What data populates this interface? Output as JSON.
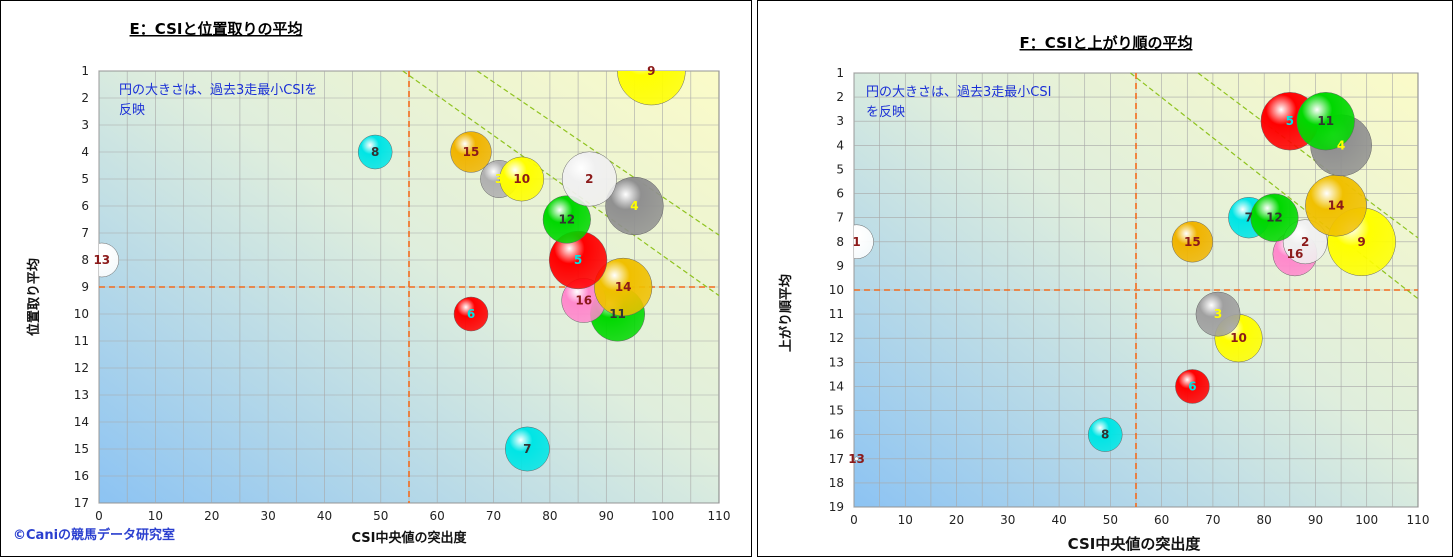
{
  "chart_data": [
    {
      "type": "scatter",
      "title": "E：CSIと位置取りの平均",
      "xlabel": "CSI中央値の突出度",
      "ylabel": "位置取り平均",
      "xlim": [
        0,
        110
      ],
      "ylim": [
        1,
        17
      ],
      "y_reversed": true,
      "xticks": [
        0,
        10,
        20,
        30,
        40,
        50,
        60,
        70,
        80,
        90,
        100,
        110
      ],
      "yticks": [
        1,
        2,
        3,
        4,
        5,
        6,
        7,
        8,
        9,
        10,
        11,
        12,
        13,
        14,
        15,
        16,
        17
      ],
      "reference_lines": {
        "x": 55,
        "y": 9
      },
      "note": [
        "円の大きさは、過去3走最小CSIを",
        "反映"
      ],
      "copyright": "©Caniの競馬データ研究室",
      "grid": true,
      "points": [
        {
          "label": "13",
          "x": 0.5,
          "y": 8.0,
          "size": 0.5,
          "color": "#ffffff",
          "label_color": "#8b1a1a"
        },
        {
          "label": "8",
          "x": 49,
          "y": 4.0,
          "size": 0.5,
          "color": "#00e5e5",
          "label_color": "#333333"
        },
        {
          "label": "15",
          "x": 66,
          "y": 4.0,
          "size": 0.6,
          "color": "#f0b400",
          "label_color": "#8b1a1a"
        },
        {
          "label": "3",
          "x": 71,
          "y": 5.0,
          "size": 0.55,
          "color": "#b0b0b0",
          "label_color": "#ffff00"
        },
        {
          "label": "10",
          "x": 75,
          "y": 5.0,
          "size": 0.65,
          "color": "#ffff00",
          "label_color": "#8b1a1a"
        },
        {
          "label": "2",
          "x": 87,
          "y": 5.0,
          "size": 0.8,
          "color": "#f0f0f0",
          "label_color": "#8b1a1a"
        },
        {
          "label": "4",
          "x": 95,
          "y": 6.0,
          "size": 0.85,
          "color": "#909090",
          "label_color": "#ffff00"
        },
        {
          "label": "12",
          "x": 83,
          "y": 6.5,
          "size": 0.7,
          "color": "#00d800",
          "label_color": "#333333"
        },
        {
          "label": "5",
          "x": 85,
          "y": 8.0,
          "size": 0.85,
          "color": "#ff0000",
          "label_color": "#00e5e5"
        },
        {
          "label": "11",
          "x": 92,
          "y": 10.0,
          "size": 0.8,
          "color": "#00d800",
          "label_color": "#333333"
        },
        {
          "label": "14",
          "x": 93,
          "y": 9.0,
          "size": 0.85,
          "color": "#f0c000",
          "label_color": "#8b1a1a"
        },
        {
          "label": "16",
          "x": 86,
          "y": 9.5,
          "size": 0.65,
          "color": "#ff88cc",
          "label_color": "#8b1a1a"
        },
        {
          "label": "6",
          "x": 66,
          "y": 10.0,
          "size": 0.5,
          "color": "#ff0000",
          "label_color": "#00e5e5"
        },
        {
          "label": "7",
          "x": 76,
          "y": 15.0,
          "size": 0.65,
          "color": "#00e5e5",
          "label_color": "#333333"
        },
        {
          "label": "9",
          "x": 98,
          "y": 1.0,
          "size": 1.0,
          "color": "#ffff00",
          "label_color": "#8b1a1a"
        }
      ]
    },
    {
      "type": "scatter",
      "title": "F：CSIと上がり順の平均",
      "xlabel": "CSI中央値の突出度",
      "ylabel": "上がり順平均",
      "xlim": [
        0,
        110
      ],
      "ylim": [
        1,
        19
      ],
      "y_reversed": true,
      "xticks": [
        0,
        10,
        20,
        30,
        40,
        50,
        60,
        70,
        80,
        90,
        100,
        110
      ],
      "yticks": [
        1,
        2,
        3,
        4,
        5,
        6,
        7,
        8,
        9,
        10,
        11,
        12,
        13,
        14,
        15,
        16,
        17,
        18,
        19
      ],
      "reference_lines": {
        "x": 55,
        "y": 10
      },
      "note": [
        "円の大きさは、過去3走最小CSI",
        "を反映"
      ],
      "grid": true,
      "points": [
        {
          "label": "1",
          "x": 0.5,
          "y": 8.0,
          "size": 0.5,
          "color": "#ffffff",
          "label_color": "#8b1a1a"
        },
        {
          "label": "13",
          "x": 0.5,
          "y": 17.0,
          "size": 0.05,
          "color": "#ffffff",
          "label_color": "#8b1a1a"
        },
        {
          "label": "8",
          "x": 49,
          "y": 16.0,
          "size": 0.5,
          "color": "#00e5e5",
          "label_color": "#333333"
        },
        {
          "label": "6",
          "x": 66,
          "y": 14.0,
          "size": 0.5,
          "color": "#ff0000",
          "label_color": "#00e5e5"
        },
        {
          "label": "15",
          "x": 66,
          "y": 8.0,
          "size": 0.6,
          "color": "#f0b400",
          "label_color": "#8b1a1a"
        },
        {
          "label": "3",
          "x": 71,
          "y": 11.0,
          "size": 0.65,
          "color": "#a0a0a0",
          "label_color": "#ffff00"
        },
        {
          "label": "10",
          "x": 75,
          "y": 12.0,
          "size": 0.7,
          "color": "#ffff00",
          "label_color": "#8b1a1a"
        },
        {
          "label": "7",
          "x": 77,
          "y": 7.0,
          "size": 0.6,
          "color": "#00e5e5",
          "label_color": "#333333"
        },
        {
          "label": "12",
          "x": 82,
          "y": 7.0,
          "size": 0.7,
          "color": "#00d800",
          "label_color": "#333333"
        },
        {
          "label": "2",
          "x": 88,
          "y": 8.0,
          "size": 0.65,
          "color": "#f0f0f0",
          "label_color": "#8b1a1a"
        },
        {
          "label": "16",
          "x": 86,
          "y": 8.5,
          "size": 0.65,
          "color": "#ff88cc",
          "label_color": "#8b1a1a"
        },
        {
          "label": "5",
          "x": 85,
          "y": 3.0,
          "size": 0.85,
          "color": "#ff0000",
          "label_color": "#00e5e5"
        },
        {
          "label": "4",
          "x": 95,
          "y": 4.0,
          "size": 0.9,
          "color": "#909090",
          "label_color": "#ffff00"
        },
        {
          "label": "11",
          "x": 92,
          "y": 3.0,
          "size": 0.85,
          "color": "#00d800",
          "label_color": "#333333"
        },
        {
          "label": "14",
          "x": 94,
          "y": 6.5,
          "size": 0.9,
          "color": "#f0c000",
          "label_color": "#8b1a1a"
        },
        {
          "label": "9",
          "x": 99,
          "y": 8.0,
          "size": 1.0,
          "color": "#ffff00",
          "label_color": "#8b1a1a"
        }
      ]
    }
  ]
}
